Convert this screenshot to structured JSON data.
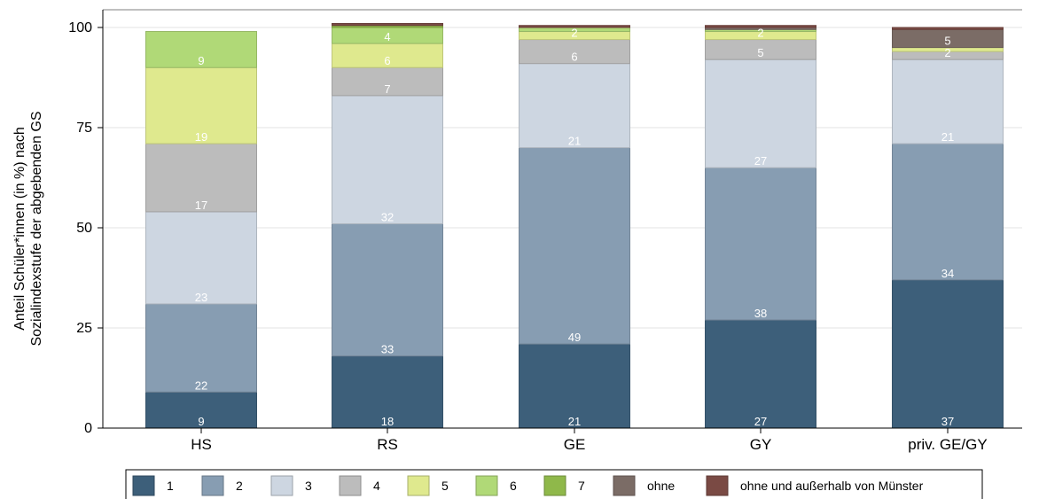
{
  "chart_data": {
    "type": "bar",
    "stacked": true,
    "ylabel_lines": [
      "Anteil Schüler*innen (in %) nach",
      "Sozialindexstufe der abgebenden GS"
    ],
    "ylim": [
      0,
      100
    ],
    "yticks": [
      0,
      25,
      50,
      75,
      100
    ],
    "grid": true,
    "legend_position": "bottom",
    "categories": [
      "HS",
      "RS",
      "GE",
      "GY",
      "priv. GE/GY"
    ],
    "series": [
      {
        "name": "1",
        "color": "#3d5f7a",
        "values": [
          9,
          18,
          21,
          27,
          37
        ],
        "labels": [
          "9",
          "18",
          "21",
          "27",
          "37"
        ]
      },
      {
        "name": "2",
        "color": "#879db2",
        "values": [
          22,
          33,
          49,
          38,
          34
        ],
        "labels": [
          "22",
          "33",
          "49",
          "38",
          "34"
        ]
      },
      {
        "name": "3",
        "color": "#cdd6e1",
        "values": [
          23,
          32,
          21,
          27,
          21
        ],
        "labels": [
          "23",
          "32",
          "21",
          "27",
          "21"
        ]
      },
      {
        "name": "4",
        "color": "#bcbcbc",
        "values": [
          17,
          7,
          6,
          5,
          2
        ],
        "labels": [
          "17",
          "7",
          "6",
          "5",
          "2"
        ]
      },
      {
        "name": "5",
        "color": "#dfe98e",
        "values": [
          19,
          6,
          2,
          2,
          1
        ],
        "labels": [
          "19",
          "6",
          "2",
          "2",
          ""
        ]
      },
      {
        "name": "6",
        "color": "#b0d977",
        "values": [
          9,
          4,
          1,
          0.5,
          0
        ],
        "labels": [
          "9",
          "4",
          "",
          "",
          ""
        ]
      },
      {
        "name": "7",
        "color": "#8fb84a",
        "values": [
          0,
          0.5,
          0,
          0,
          0
        ],
        "labels": [
          "",
          "",
          "",
          "",
          ""
        ]
      },
      {
        "name": "ohne",
        "color": "#7b6c66",
        "values": [
          0,
          0,
          0,
          0.5,
          4.5
        ],
        "labels": [
          "",
          "",
          "",
          "",
          "5"
        ]
      },
      {
        "name": "ohne und außerhalb von Münster",
        "color": "#7a4a44",
        "values": [
          0,
          0.5,
          0.5,
          0.5,
          0.5
        ],
        "labels": [
          "",
          "",
          "",
          "",
          ""
        ]
      }
    ]
  }
}
